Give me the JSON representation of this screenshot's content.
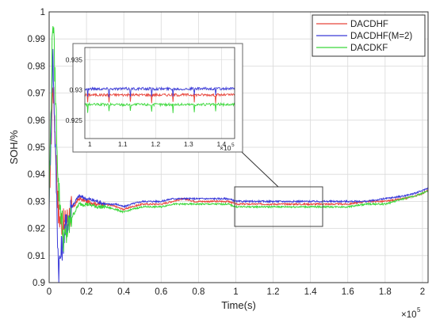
{
  "chart_data": {
    "type": "line",
    "xlabel": "Time(s)",
    "ylabel": "SOH/%",
    "x_exponent_label": "×10",
    "x_exponent_power": "5",
    "xlim": [
      0,
      2.03
    ],
    "ylim": [
      0.9,
      1.0
    ],
    "xticks": [
      "0",
      "0.2",
      "0.4",
      "0.6",
      "0.8",
      "1",
      "1.2",
      "1.4",
      "1.6",
      "1.8",
      "2"
    ],
    "yticks": [
      "0.9",
      "0.91",
      "0.92",
      "0.93",
      "0.94",
      "0.95",
      "0.96",
      "0.97",
      "0.98",
      "0.99",
      "1"
    ],
    "grid": true,
    "legend_position": "top-right",
    "series": [
      {
        "name": "DACDHF",
        "color": "#e8443a",
        "x": [
          0.0,
          0.02,
          0.05,
          0.08,
          0.12,
          0.16,
          0.2,
          0.26,
          0.3,
          0.36,
          0.4,
          0.44,
          0.5,
          0.56,
          0.6,
          0.66,
          0.72,
          0.78,
          0.84,
          0.9,
          0.96,
          1.0,
          1.1,
          1.2,
          1.3,
          1.4,
          1.5,
          1.6,
          1.7,
          1.8,
          1.9,
          1.96,
          2.0,
          2.03
        ],
        "y": [
          0.93,
          0.975,
          0.925,
          0.921,
          0.927,
          0.931,
          0.93,
          0.929,
          0.929,
          0.928,
          0.927,
          0.928,
          0.929,
          0.929,
          0.929,
          0.93,
          0.931,
          0.93,
          0.93,
          0.93,
          0.93,
          0.929,
          0.929,
          0.929,
          0.929,
          0.929,
          0.929,
          0.929,
          0.93,
          0.93,
          0.931,
          0.932,
          0.933,
          0.934
        ]
      },
      {
        "name": "DACDHF(M=2)",
        "color": "#3a3ad8",
        "x": [
          0.0,
          0.02,
          0.05,
          0.08,
          0.12,
          0.16,
          0.2,
          0.26,
          0.3,
          0.36,
          0.4,
          0.44,
          0.5,
          0.56,
          0.6,
          0.66,
          0.72,
          0.78,
          0.84,
          0.9,
          0.96,
          1.0,
          1.1,
          1.2,
          1.3,
          1.4,
          1.5,
          1.6,
          1.7,
          1.8,
          1.9,
          1.96,
          2.0,
          2.03
        ],
        "y": [
          0.93,
          0.985,
          0.905,
          0.918,
          0.928,
          0.932,
          0.931,
          0.93,
          0.929,
          0.929,
          0.928,
          0.929,
          0.93,
          0.93,
          0.93,
          0.931,
          0.931,
          0.931,
          0.931,
          0.931,
          0.931,
          0.93,
          0.93,
          0.93,
          0.93,
          0.93,
          0.93,
          0.93,
          0.93,
          0.931,
          0.932,
          0.933,
          0.934,
          0.935
        ]
      },
      {
        "name": "DACDKF",
        "color": "#3ad83a",
        "x": [
          0.0,
          0.02,
          0.05,
          0.08,
          0.12,
          0.16,
          0.2,
          0.26,
          0.3,
          0.36,
          0.4,
          0.44,
          0.5,
          0.56,
          0.6,
          0.66,
          0.72,
          0.78,
          0.84,
          0.9,
          0.96,
          1.0,
          1.1,
          1.2,
          1.3,
          1.4,
          1.5,
          1.6,
          1.7,
          1.8,
          1.9,
          1.96,
          2.0,
          2.03
        ],
        "y": [
          0.93,
          1.0,
          0.935,
          0.915,
          0.924,
          0.929,
          0.929,
          0.928,
          0.928,
          0.927,
          0.926,
          0.927,
          0.928,
          0.928,
          0.928,
          0.929,
          0.929,
          0.929,
          0.929,
          0.929,
          0.929,
          0.928,
          0.928,
          0.928,
          0.928,
          0.928,
          0.928,
          0.928,
          0.929,
          0.929,
          0.931,
          0.932,
          0.933,
          0.934
        ]
      }
    ],
    "inset": {
      "xlim": [
        0.985,
        1.44
      ],
      "ylim": [
        0.922,
        0.937
      ],
      "xticks": [
        "1",
        "1.1",
        "1.2",
        "1.3",
        "1.4"
      ],
      "yticks": [
        "0.925",
        "0.93",
        "0.935"
      ],
      "x_exponent_label": "×10",
      "x_exponent_power": "5",
      "series_values": [
        {
          "name": "DACDHF",
          "y": 0.9292
        },
        {
          "name": "DACDHF(M=2)",
          "y": 0.9302
        },
        {
          "name": "DACDKF",
          "y": 0.9276
        }
      ]
    }
  }
}
